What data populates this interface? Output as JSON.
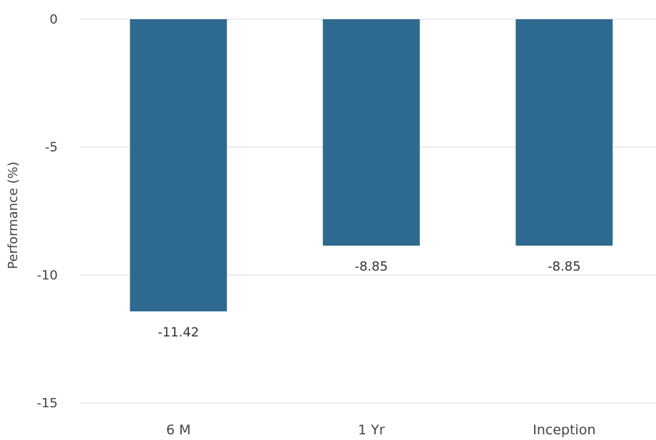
{
  "chart_data": {
    "type": "bar",
    "categories": [
      "6 M",
      "1 Yr",
      "Inception"
    ],
    "values": [
      -11.42,
      -8.85,
      -8.85
    ],
    "data_labels": [
      "-11.42",
      "-8.85",
      "-8.85"
    ],
    "title": "",
    "xlabel": "",
    "ylabel": "Performance (%)",
    "ylim": [
      -15,
      0
    ],
    "yticks": [
      0,
      -5,
      -10,
      -15
    ],
    "ytick_labels": [
      "0",
      "-5",
      "-10",
      "-15"
    ],
    "grid": true,
    "legend": "none",
    "bar_color": "#2e6a90"
  }
}
